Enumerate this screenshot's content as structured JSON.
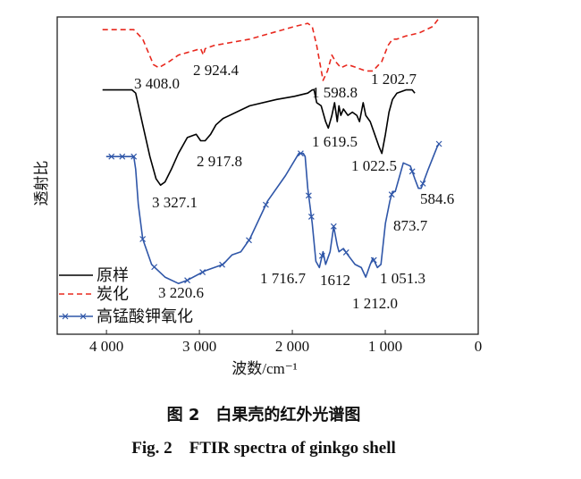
{
  "chart_data": {
    "type": "line",
    "xlabel": "波数/cm⁻¹",
    "ylabel": "透射比",
    "xlim": [
      4530,
      0
    ],
    "ylim": [
      0,
      100
    ],
    "x_reversed": true,
    "y_ticks_shown": false,
    "grid": false,
    "legend_placement": "bottom-left",
    "x_ticks": [
      4000,
      3000,
      2000,
      1000,
      0
    ],
    "x_tick_labels": [
      "4 000",
      "3 000",
      "2 000",
      "1 000",
      "0"
    ],
    "series": [
      {
        "name": "原样",
        "color": "#000000",
        "style": "solid",
        "points": [
          [
            4042,
            77
          ],
          [
            3725,
            77
          ],
          [
            3686,
            76
          ],
          [
            3610,
            66
          ],
          [
            3533,
            56
          ],
          [
            3466,
            49
          ],
          [
            3418,
            47
          ],
          [
            3370,
            48
          ],
          [
            3302,
            52
          ],
          [
            3226,
            57
          ],
          [
            3130,
            62
          ],
          [
            3034,
            63
          ],
          [
            2986,
            61
          ],
          [
            2938,
            61
          ],
          [
            2880,
            63
          ],
          [
            2822,
            66
          ],
          [
            2746,
            68
          ],
          [
            2458,
            72
          ],
          [
            2170,
            74
          ],
          [
            1978,
            75
          ],
          [
            1834,
            76
          ],
          [
            1786,
            77
          ],
          [
            1766,
            77
          ],
          [
            1738,
            73
          ],
          [
            1690,
            72
          ],
          [
            1642,
            67
          ],
          [
            1613,
            65
          ],
          [
            1574,
            69
          ],
          [
            1546,
            73
          ],
          [
            1517,
            67
          ],
          [
            1498,
            72
          ],
          [
            1478,
            69
          ],
          [
            1450,
            71
          ],
          [
            1402,
            69
          ],
          [
            1354,
            70
          ],
          [
            1306,
            69
          ],
          [
            1277,
            67
          ],
          [
            1238,
            73
          ],
          [
            1210,
            69
          ],
          [
            1162,
            67
          ],
          [
            1114,
            63
          ],
          [
            1066,
            59
          ],
          [
            1037,
            57
          ],
          [
            998,
            63
          ],
          [
            960,
            70
          ],
          [
            922,
            74
          ],
          [
            874,
            76
          ],
          [
            778,
            77
          ],
          [
            710,
            77
          ],
          [
            682,
            76
          ]
        ]
      },
      {
        "name": "炭化",
        "color": "#e8281e",
        "style": "dashed",
        "points": [
          [
            4042,
            96
          ],
          [
            3754,
            96
          ],
          [
            3706,
            96
          ],
          [
            3610,
            93
          ],
          [
            3494,
            85
          ],
          [
            3437,
            84
          ],
          [
            3322,
            86
          ],
          [
            3226,
            88
          ],
          [
            2986,
            90
          ],
          [
            2957,
            88
          ],
          [
            2938,
            90
          ],
          [
            2842,
            91
          ],
          [
            2458,
            93
          ],
          [
            1978,
            97
          ],
          [
            1834,
            98
          ],
          [
            1786,
            97
          ],
          [
            1738,
            91
          ],
          [
            1670,
            80
          ],
          [
            1622,
            83
          ],
          [
            1574,
            88
          ],
          [
            1536,
            86
          ],
          [
            1478,
            84
          ],
          [
            1402,
            85
          ],
          [
            1306,
            84
          ],
          [
            1210,
            83
          ],
          [
            1133,
            83
          ],
          [
            1037,
            86
          ],
          [
            970,
            91
          ],
          [
            922,
            93
          ],
          [
            874,
            93
          ],
          [
            778,
            94
          ],
          [
            634,
            95
          ],
          [
            490,
            97
          ],
          [
            413,
            100
          ]
        ]
      },
      {
        "name": "高锰酸钾氧化",
        "color": "#2f56a8",
        "style": "solid-x-markers",
        "points": [
          [
            4003,
            56
          ],
          [
            3754,
            56
          ],
          [
            3706,
            56
          ],
          [
            3686,
            52
          ],
          [
            3658,
            41
          ],
          [
            3610,
            30
          ],
          [
            3514,
            22
          ],
          [
            3370,
            18
          ],
          [
            3226,
            16
          ],
          [
            3130,
            17
          ],
          [
            2938,
            20
          ],
          [
            2746,
            22
          ],
          [
            2650,
            25
          ],
          [
            2554,
            26
          ],
          [
            2458,
            30
          ],
          [
            2266,
            42
          ],
          [
            2074,
            50
          ],
          [
            1930,
            57
          ],
          [
            1882,
            57
          ],
          [
            1862,
            56
          ],
          [
            1834,
            46
          ],
          [
            1786,
            35
          ],
          [
            1747,
            23
          ],
          [
            1709,
            21
          ],
          [
            1670,
            26
          ],
          [
            1642,
            22
          ],
          [
            1594,
            26
          ],
          [
            1555,
            34
          ],
          [
            1517,
            28
          ],
          [
            1498,
            26
          ],
          [
            1450,
            27
          ],
          [
            1402,
            25
          ],
          [
            1325,
            22
          ],
          [
            1258,
            21
          ],
          [
            1210,
            18
          ],
          [
            1162,
            22
          ],
          [
            1133,
            24
          ],
          [
            1085,
            21
          ],
          [
            1046,
            22
          ],
          [
            998,
            35
          ],
          [
            950,
            42
          ],
          [
            922,
            45
          ],
          [
            893,
            45
          ],
          [
            854,
            49
          ],
          [
            806,
            54
          ],
          [
            730,
            53
          ],
          [
            682,
            49
          ],
          [
            643,
            46
          ],
          [
            614,
            46
          ],
          [
            538,
            52
          ],
          [
            442,
            59
          ],
          [
            422,
            60
          ]
        ],
        "marker_x": [
          3946,
          3830,
          3706,
          3610,
          3485,
          3130,
          2966,
          2755,
          2467,
          2285,
          1910,
          1824,
          1795,
          1680,
          1555,
          1421,
          1123,
          931,
          710,
          595,
          422
        ]
      }
    ],
    "annotations": [
      "3 408.0",
      "2 924.4",
      "1 202.7",
      "1 598.8",
      "1 619.5",
      "1 022.5",
      "2 917.8",
      "3 327.1",
      "584.6",
      "873.7",
      "1 716.7",
      "1612",
      "1 051.3",
      "1 212.0",
      "3 220.6"
    ]
  },
  "caption": {
    "cn": "图 2　白果壳的红外光谱图",
    "en": "Fig. 2　FTIR spectra of ginkgo shell"
  }
}
